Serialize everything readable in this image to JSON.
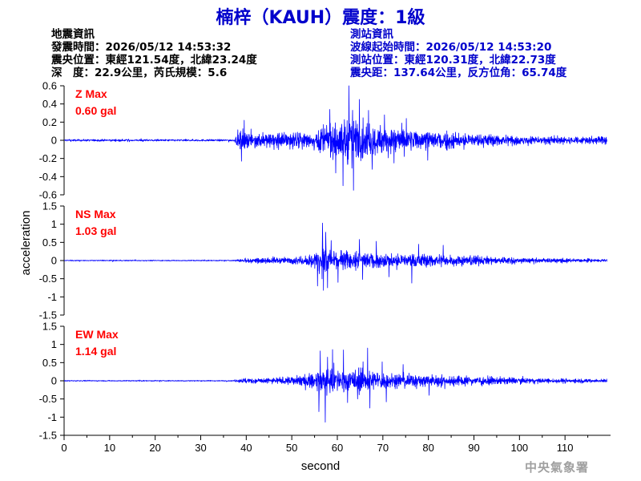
{
  "title": "楠梓（KAUH）震度：1級",
  "earthquake_info": {
    "heading": "地震資訊",
    "origin_time": "發震時間：2026/05/12 14:53:32",
    "epicenter": "震央位置：東經121.54度，北緯23.24度",
    "depth_magnitude": "深　度：22.9公里，芮氏規模：5.6"
  },
  "station_info": {
    "heading": "測站資訊",
    "waveform_start": "波線起始時間：2026/05/12 14:53:20",
    "station_location": "測站位置：東經120.31度，北緯22.73度",
    "distance_azimuth": "震央距：137.64公里，反方位角：65.74度"
  },
  "agency": "中央氣象署",
  "colors": {
    "title": "#0000cc",
    "trace": "#0000ff",
    "max_label": "#ff0000",
    "info_station": "#0000cc"
  },
  "chart_data": {
    "type": "line",
    "xlabel": "second",
    "ylabel": "acceleration",
    "xlim": [
      0,
      120
    ],
    "xticks": [
      0,
      10,
      20,
      30,
      40,
      50,
      60,
      70,
      80,
      90,
      100,
      110
    ],
    "p_arrival_s": 37.5,
    "panels": [
      {
        "component": "Z",
        "max_label": "Z Max",
        "max_value": "0.60 gal",
        "ylim": [
          -0.6,
          0.6
        ],
        "yticks": [
          -0.6,
          -0.4,
          -0.2,
          0,
          0.2,
          0.4,
          0.6
        ],
        "noise": 0.01,
        "pre": 0.02,
        "envelope": [
          [
            37.5,
            0.06
          ],
          [
            38.5,
            0.17
          ],
          [
            42,
            0.12
          ],
          [
            48,
            0.13
          ],
          [
            55,
            0.16
          ],
          [
            58,
            0.28
          ],
          [
            61,
            0.35
          ],
          [
            63,
            0.5
          ],
          [
            66,
            0.3
          ],
          [
            70,
            0.22
          ],
          [
            76,
            0.18
          ],
          [
            85,
            0.14
          ],
          [
            95,
            0.09
          ],
          [
            105,
            0.07
          ],
          [
            119,
            0.06
          ]
        ],
        "peaks": [
          [
            62.5,
            0.6
          ],
          [
            63.5,
            -0.55
          ],
          [
            61.2,
            -0.5
          ],
          [
            64.8,
            0.45
          ],
          [
            58.3,
            0.34
          ],
          [
            59.6,
            -0.36
          ],
          [
            67.6,
            -0.32
          ],
          [
            66.8,
            0.33
          ],
          [
            39.5,
            0.22
          ],
          [
            38.9,
            -0.23
          ],
          [
            70.3,
            0.28
          ],
          [
            72.4,
            -0.25
          ],
          [
            75.1,
            0.24
          ],
          [
            79.8,
            -0.22
          ]
        ]
      },
      {
        "component": "NS",
        "max_label": "NS Max",
        "max_value": "1.03 gal",
        "ylim": [
          -1.5,
          1.5
        ],
        "yticks": [
          -1.5,
          -1,
          -0.5,
          0,
          0.5,
          1,
          1.5
        ],
        "noise": 0.012,
        "pre": 0.025,
        "envelope": [
          [
            37.5,
            0.04
          ],
          [
            40,
            0.1
          ],
          [
            45,
            0.12
          ],
          [
            50,
            0.14
          ],
          [
            53,
            0.2
          ],
          [
            56,
            0.45
          ],
          [
            57,
            0.65
          ],
          [
            59,
            0.5
          ],
          [
            62,
            0.38
          ],
          [
            66,
            0.4
          ],
          [
            70,
            0.35
          ],
          [
            76,
            0.28
          ],
          [
            82,
            0.25
          ],
          [
            90,
            0.2
          ],
          [
            100,
            0.13
          ],
          [
            110,
            0.09
          ],
          [
            119,
            0.06
          ]
        ],
        "peaks": [
          [
            56.7,
            1.03
          ],
          [
            56.9,
            -0.82
          ],
          [
            57.4,
            0.78
          ],
          [
            57.8,
            -0.75
          ],
          [
            55.6,
            -0.7
          ],
          [
            58.6,
            0.55
          ],
          [
            60.1,
            -0.6
          ],
          [
            64.8,
            0.58
          ],
          [
            65.5,
            -0.52
          ],
          [
            68.5,
            0.53
          ],
          [
            71.3,
            -0.45
          ],
          [
            76.3,
            -0.62
          ],
          [
            77.8,
            0.45
          ],
          [
            83.2,
            0.42
          ]
        ]
      },
      {
        "component": "EW",
        "max_label": "EW Max",
        "max_value": "1.14 gal",
        "ylim": [
          -1.5,
          1.5
        ],
        "yticks": [
          -1.5,
          -1,
          -0.5,
          0,
          0.5,
          1,
          1.5
        ],
        "noise": 0.012,
        "pre": 0.025,
        "envelope": [
          [
            37.5,
            0.05
          ],
          [
            40,
            0.12
          ],
          [
            45,
            0.12
          ],
          [
            50,
            0.17
          ],
          [
            54,
            0.3
          ],
          [
            56,
            0.55
          ],
          [
            58,
            0.6
          ],
          [
            60,
            0.48
          ],
          [
            63,
            0.45
          ],
          [
            66,
            0.55
          ],
          [
            68,
            0.42
          ],
          [
            72,
            0.32
          ],
          [
            78,
            0.27
          ],
          [
            85,
            0.22
          ],
          [
            95,
            0.15
          ],
          [
            105,
            0.1
          ],
          [
            119,
            0.07
          ]
        ],
        "peaks": [
          [
            57.3,
            -1.14
          ],
          [
            57.8,
            0.65
          ],
          [
            56.2,
            0.82
          ],
          [
            58.9,
            0.86
          ],
          [
            55.9,
            -0.85
          ],
          [
            61.3,
            0.85
          ],
          [
            62.2,
            -0.6
          ],
          [
            66.6,
            0.9
          ],
          [
            67.1,
            -0.75
          ],
          [
            64.4,
            -0.5
          ],
          [
            69.8,
            0.52
          ],
          [
            70.7,
            -0.58
          ],
          [
            74.4,
            0.45
          ],
          [
            80.1,
            -0.4
          ]
        ]
      }
    ]
  }
}
